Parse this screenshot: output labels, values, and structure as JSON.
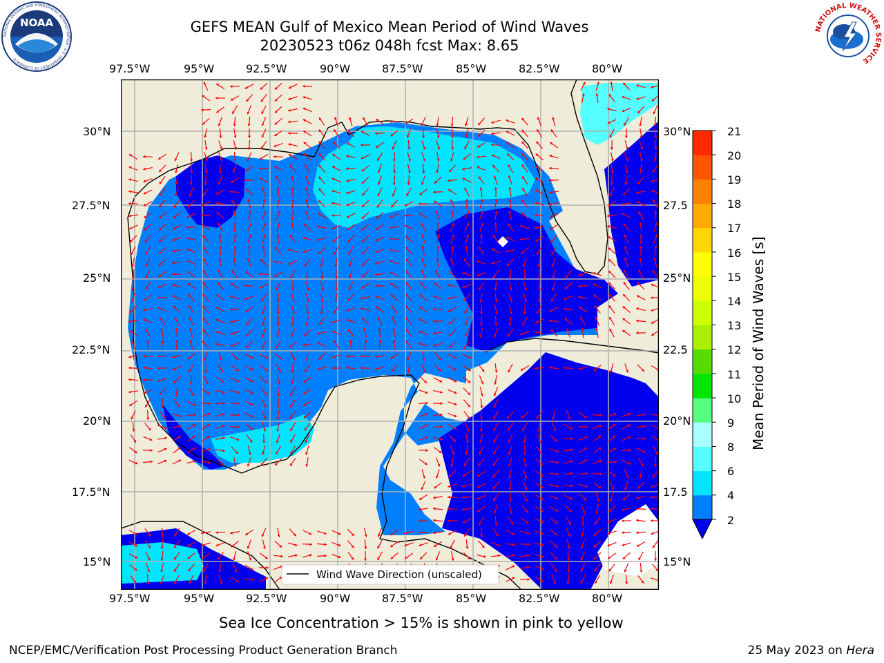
{
  "header": {
    "title_line1": "GEFS MEAN Gulf of Mexico Mean Period of Wind Waves",
    "title_line2": "20230523 t06z 048h fcst   Max: 8.65"
  },
  "map": {
    "lon_ticks_top": [
      "97.5°W",
      "95°W",
      "92.5°W",
      "90°W",
      "87.5°W",
      "85°W",
      "82.5°W",
      "80°W"
    ],
    "lon_ticks_bottom": [
      "97.5°W",
      "95°W",
      "92.5°W",
      "90°W",
      "87.5°W",
      "85°W",
      "82.5°W",
      "80°W"
    ],
    "lat_ticks_left": [
      "30°N",
      "27.5°N",
      "25°N",
      "22.5°N",
      "20°N",
      "17.5°N",
      "15°N"
    ],
    "lat_ticks_right": [
      "30°N",
      "27.5",
      "25°N",
      "22.5",
      "20°N",
      "17.5",
      "15°N"
    ],
    "legend_label": "Wind Wave Direction (unscaled)",
    "colors": {
      "land": "#efecda",
      "arrow": "#ff0000",
      "grid": "#b0b0b0"
    }
  },
  "colorbar": {
    "label": "Mean Period of Wind Waves [s]",
    "ticks": [
      "2",
      "4",
      "6",
      "8",
      "9",
      "10",
      "11",
      "12",
      "13",
      "14",
      "15",
      "16",
      "17",
      "18",
      "19",
      "20",
      "21"
    ],
    "colors": [
      "#0033ff",
      "#0080ff",
      "#00e5ff",
      "#55ffff",
      "#a8ffff",
      "#55ff80",
      "#00e600",
      "#55dd00",
      "#aaee00",
      "#ccff00",
      "#eeff00",
      "#ffff00",
      "#ffd700",
      "#ffaa00",
      "#ff8000",
      "#ff5500",
      "#ff2a00",
      "#ff0000"
    ]
  },
  "notes": {
    "sea_ice": "Sea Ice Concentration > 15% is shown in pink to yellow"
  },
  "footer": {
    "left": "NCEP/EMC/Verification Post Processing Product Generation Branch",
    "right_prefix": "25 May 2023 on ",
    "right_machine": "Hera"
  },
  "logos": {
    "noaa_text": "NOAA",
    "noaa_ring": "NATIONAL OCEANIC AND ATMOSPHERIC ADMINISTRATION · U.S. DEPARTMENT OF COMMERCE",
    "nws_ring": "NATIONAL WEATHER SERVICE"
  }
}
